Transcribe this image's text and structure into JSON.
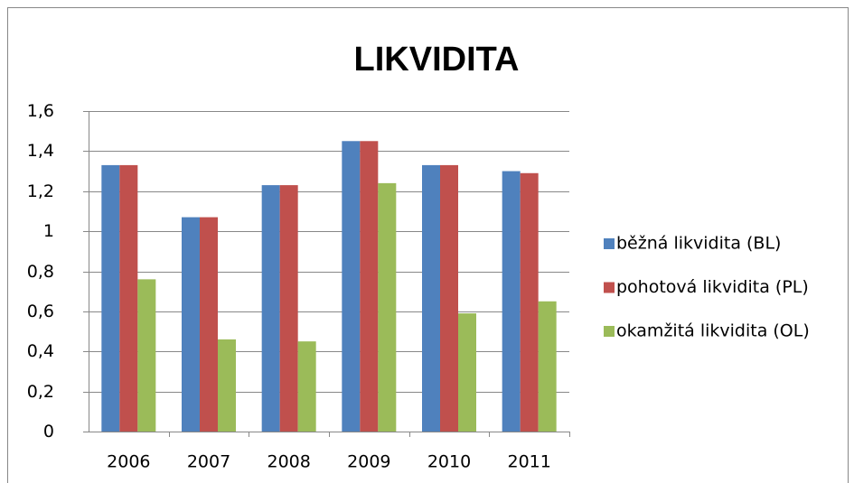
{
  "chart_data": {
    "type": "bar",
    "title": "LIKVIDITA",
    "categories": [
      "2006",
      "2007",
      "2008",
      "2009",
      "2010",
      "2011"
    ],
    "series": [
      {
        "name": "běžná likvidita (BL)",
        "color": "#4f81bd",
        "values": [
          1.33,
          1.07,
          1.23,
          1.45,
          1.33,
          1.3
        ]
      },
      {
        "name": "pohotová likvidita (PL)",
        "color": "#c0504d",
        "values": [
          1.33,
          1.07,
          1.23,
          1.45,
          1.33,
          1.29
        ]
      },
      {
        "name": "okamžitá likvidita (OL)",
        "color": "#9bbb59",
        "values": [
          0.76,
          0.46,
          0.45,
          1.24,
          0.59,
          0.65
        ]
      }
    ],
    "ylim": [
      0,
      1.6
    ],
    "yticks": [
      0,
      {
        "value": 0.2,
        "label": "0,2"
      },
      {
        "value": 0.4,
        "label": "0,4"
      },
      {
        "value": 0.6,
        "label": "0,6"
      },
      {
        "value": 0.8,
        "label": "0,8"
      },
      1,
      {
        "value": 1.2,
        "label": "1,2"
      },
      {
        "value": 1.4,
        "label": "1,4"
      },
      {
        "value": 1.6,
        "label": "1,6"
      }
    ],
    "grid": true,
    "legend": "right"
  }
}
